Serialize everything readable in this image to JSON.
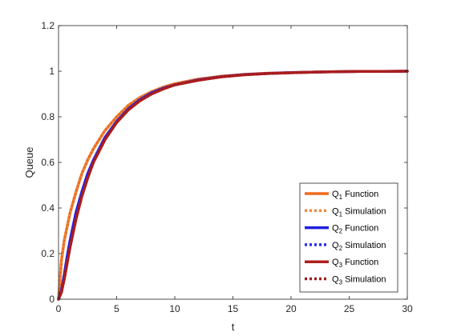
{
  "chart_data": {
    "type": "line",
    "title": "",
    "xlabel": "t",
    "ylabel": "Queue",
    "xlim": [
      0,
      30
    ],
    "ylim": [
      0,
      1.2
    ],
    "xticks": [
      "0",
      "5",
      "10",
      "15",
      "20",
      "25",
      "30"
    ],
    "yticks": [
      "0",
      "0.2",
      "0.4",
      "0.6",
      "0.8",
      "1",
      "1.2"
    ],
    "grid": false,
    "legend_position": "bottom-right",
    "x": [
      0,
      0.25,
      0.5,
      0.75,
      1,
      1.5,
      2,
      2.5,
      3,
      4,
      5,
      6,
      7,
      8,
      9,
      10,
      12,
      14,
      16,
      18,
      20,
      22,
      24,
      26,
      28,
      30
    ],
    "series": [
      {
        "name": "Q1 Function",
        "legend_main": "Q",
        "legend_sub": "1",
        "legend_rest": " Function",
        "style": "solid",
        "color": "#EE6A1E",
        "values": [
          0.0,
          0.17,
          0.26,
          0.32,
          0.38,
          0.47,
          0.55,
          0.61,
          0.66,
          0.74,
          0.8,
          0.85,
          0.885,
          0.91,
          0.93,
          0.945,
          0.965,
          0.978,
          0.986,
          0.991,
          0.994,
          0.996,
          0.998,
          0.999,
          0.999,
          1.0
        ]
      },
      {
        "name": "Q1 Simulation",
        "legend_main": "Q",
        "legend_sub": "1",
        "legend_rest": " Simulation",
        "style": "dotted",
        "color": "#EE8A3A",
        "values": [
          0.0,
          0.17,
          0.26,
          0.32,
          0.38,
          0.47,
          0.55,
          0.61,
          0.66,
          0.74,
          0.8,
          0.85,
          0.885,
          0.91,
          0.93,
          0.945,
          0.965,
          0.978,
          0.986,
          0.991,
          0.994,
          0.996,
          0.998,
          0.999,
          0.999,
          1.0
        ]
      },
      {
        "name": "Q2 Function",
        "legend_main": "Q",
        "legend_sub": "2",
        "legend_rest": " Function",
        "style": "solid",
        "color": "#1F1FE0",
        "values": [
          0.0,
          0.04,
          0.11,
          0.19,
          0.26,
          0.38,
          0.47,
          0.55,
          0.61,
          0.71,
          0.78,
          0.835,
          0.875,
          0.905,
          0.925,
          0.94,
          0.962,
          0.976,
          0.985,
          0.99,
          0.994,
          0.996,
          0.998,
          0.999,
          0.999,
          1.0
        ]
      },
      {
        "name": "Q2 Simulation",
        "legend_main": "Q",
        "legend_sub": "2",
        "legend_rest": " Simulation",
        "style": "dotted",
        "color": "#2A2AF0",
        "values": [
          0.0,
          0.04,
          0.11,
          0.19,
          0.26,
          0.38,
          0.47,
          0.55,
          0.61,
          0.71,
          0.78,
          0.835,
          0.875,
          0.905,
          0.925,
          0.94,
          0.962,
          0.976,
          0.985,
          0.99,
          0.994,
          0.996,
          0.998,
          0.999,
          0.999,
          1.0
        ]
      },
      {
        "name": "Q3 Function",
        "legend_main": "Q",
        "legend_sub": "3",
        "legend_rest": " Function",
        "style": "solid",
        "color": "#B01E1E",
        "values": [
          0.0,
          0.03,
          0.09,
          0.16,
          0.23,
          0.35,
          0.45,
          0.53,
          0.6,
          0.7,
          0.775,
          0.83,
          0.87,
          0.9,
          0.922,
          0.94,
          0.96,
          0.975,
          0.984,
          0.99,
          0.993,
          0.996,
          0.998,
          0.999,
          0.999,
          1.0
        ]
      },
      {
        "name": "Q3 Simulation",
        "legend_main": "Q",
        "legend_sub": "3",
        "legend_rest": " Simulation",
        "style": "dotted",
        "color": "#A01A1A",
        "values": [
          0.0,
          0.03,
          0.09,
          0.16,
          0.23,
          0.35,
          0.45,
          0.53,
          0.6,
          0.7,
          0.775,
          0.83,
          0.87,
          0.9,
          0.922,
          0.94,
          0.96,
          0.975,
          0.984,
          0.99,
          0.993,
          0.996,
          0.998,
          0.999,
          0.999,
          1.0
        ]
      }
    ]
  }
}
